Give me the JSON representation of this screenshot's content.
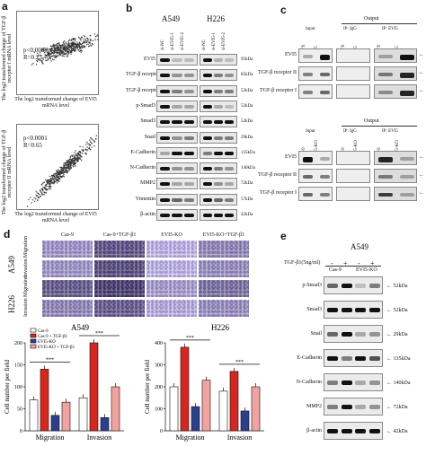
{
  "panels": {
    "a": "a",
    "b": "b",
    "c": "c",
    "d": "d",
    "e": "e"
  },
  "panel_a": {
    "plot1": {
      "ylabel": "The log2 transformed change of TGF-β receptor I mRNA level",
      "xlabel": "The log2 transformed change of EVI5 mRNA level",
      "p": "p<0.0001",
      "r": "R=0.25"
    },
    "plot2": {
      "ylabel": "The log2 transformed change of TGF-β receptor II mRNA level",
      "xlabel": "The log2 transformed change of EVI5 mRNA level",
      "p": "p<0.0001",
      "r": "R=0.65"
    }
  },
  "panel_b": {
    "cell1": "A549",
    "cell2": "H226",
    "lanes": [
      "si-NC",
      "si-EVI5-1",
      "si-EVI5-2",
      "si-NC",
      "si-EVI5-1",
      "si-EVI5-2"
    ],
    "rows": [
      {
        "name": "EVI5",
        "kda": "95kDa"
      },
      {
        "name": "TGF-β receptor II",
        "kda": "85kDa"
      },
      {
        "name": "TGF-β receptor I",
        "kda": "52kDa"
      },
      {
        "name": "p-Smad3",
        "kda": "52kDa"
      },
      {
        "name": "Smad3",
        "kda": "52kDa"
      },
      {
        "name": "Snail",
        "kda": "29kDa"
      },
      {
        "name": "E-Cadherin",
        "kda": "135kDa"
      },
      {
        "name": "N-Cadherin",
        "kda": "140kDa"
      },
      {
        "name": "MMP2",
        "kda": "72kDa"
      },
      {
        "name": "Vimentin",
        "kda": "57kDa"
      },
      {
        "name": "β-actin",
        "kda": "42kDa"
      }
    ]
  },
  "panel_c": {
    "top": {
      "output": "Output",
      "groups": [
        "Input",
        "IP: IgG",
        "IP: EVI5"
      ],
      "lanes": [
        "PLVX",
        "EVI5",
        "PLVX",
        "EVI5",
        "PLVX",
        "EVI5"
      ],
      "rows": [
        "EVI5",
        "TGF-β receptor II",
        "TGF-β receptor I"
      ]
    },
    "bottom": {
      "output": "Output",
      "groups": [
        "Input",
        "IP: IgG",
        "IP: EVI5"
      ],
      "lanes": [
        "Cas-9",
        "EVI5-KO",
        "Cas-9",
        "EVI5-KO",
        "Cas-9",
        "EVI5-KO"
      ],
      "rows": [
        "EVI5",
        "TGF-β receptor II",
        "TGF-β receptor I"
      ]
    }
  },
  "panel_d": {
    "columns": [
      "Cas-9",
      "Cas-9+TGF-β1",
      "EVI5-KO",
      "EVI5-KO+TGF-β1"
    ],
    "groups": [
      {
        "cell": "A549",
        "rows": [
          "Migration",
          "Invasion"
        ]
      },
      {
        "cell": "H226",
        "rows": [
          "Migration",
          "Invasion"
        ]
      }
    ],
    "sig": "***"
  },
  "chart_data": [
    {
      "type": "bar",
      "title": "A549",
      "ylabel": "Cell number per field",
      "categories": [
        "Migration",
        "Invasion"
      ],
      "ylim": [
        0,
        200
      ],
      "yticks": [
        0,
        50,
        100,
        150,
        200
      ],
      "series": [
        {
          "name": "Cas-9",
          "color": "#ffffff",
          "values": [
            70,
            75
          ]
        },
        {
          "name": "Cas-9 + TGF-β1",
          "color": "#d7261e",
          "values": [
            140,
            200
          ]
        },
        {
          "name": "EVI5-KO",
          "color": "#2a3f8f",
          "values": [
            35,
            30
          ]
        },
        {
          "name": "EVI5-KO + TGF-β1",
          "color": "#f2a3a0",
          "values": [
            65,
            100
          ]
        }
      ]
    },
    {
      "type": "bar",
      "title": "H226",
      "ylabel": "Cell number per field",
      "categories": [
        "Migration",
        "Invasion"
      ],
      "ylim": [
        0,
        400
      ],
      "yticks": [
        0,
        100,
        200,
        300,
        400
      ],
      "series": [
        {
          "name": "Cas-9",
          "color": "#ffffff",
          "values": [
            200,
            180
          ]
        },
        {
          "name": "Cas-9 + TGF-β1",
          "color": "#d7261e",
          "values": [
            380,
            270
          ]
        },
        {
          "name": "EVI5-KO",
          "color": "#2a3f8f",
          "values": [
            110,
            90
          ]
        },
        {
          "name": "EVI5-KO + TGF-β1",
          "color": "#f2a3a0",
          "values": [
            230,
            200
          ]
        }
      ]
    }
  ],
  "panel_e": {
    "cell": "A549",
    "treat": "TGF-β1(5ng/ml)",
    "groups": [
      "Cas-9",
      "EVI5-KO"
    ],
    "signs": [
      "-",
      "+",
      "-",
      "+"
    ],
    "rows": [
      {
        "name": "p-Smad3",
        "kda": "52kDa"
      },
      {
        "name": "Smad3",
        "kda": "52kDa"
      },
      {
        "name": "Snail",
        "kda": "29kDa"
      },
      {
        "name": "E-Cadherin",
        "kda": "135kDa"
      },
      {
        "name": "N-Cadherin",
        "kda": "140kDa"
      },
      {
        "name": "MMP2",
        "kda": "72kDa"
      },
      {
        "name": "β-actin",
        "kda": "42kDa"
      }
    ]
  }
}
